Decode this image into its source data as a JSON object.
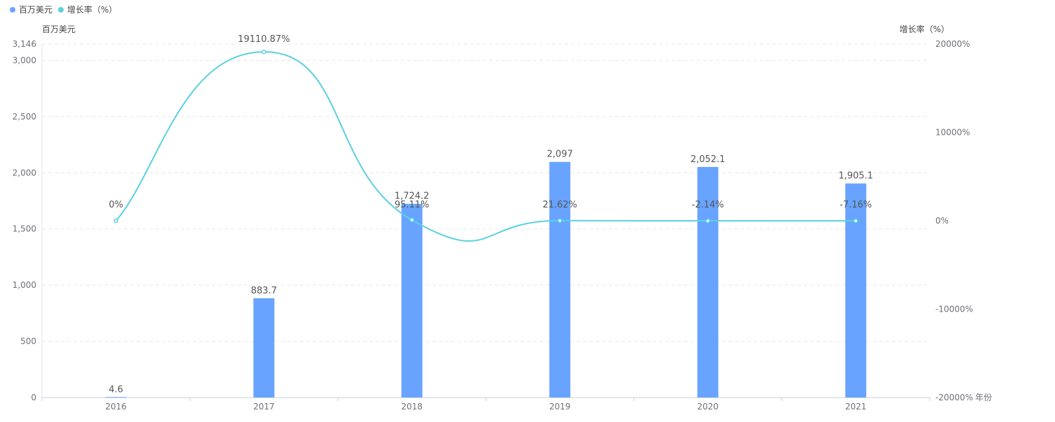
{
  "chart_data": {
    "type": "bar+line",
    "categories": [
      "2016",
      "2017",
      "2018",
      "2019",
      "2020",
      "2021"
    ],
    "series": [
      {
        "name": "百万美元",
        "type": "bar",
        "axis": "left",
        "color": "#68a4ff",
        "values": [
          4.6,
          883.7,
          1724.2,
          2097,
          2052.1,
          1905.1
        ],
        "labels": [
          "4.6",
          "883.7",
          "1,724.2",
          "2,097",
          "2,052.1",
          "1,905.1"
        ]
      },
      {
        "name": "增长率（%）",
        "type": "line",
        "smooth": true,
        "axis": "right",
        "color": "#5bd1e0",
        "values": [
          0,
          19110.87,
          95.11,
          21.62,
          -2.14,
          -7.16
        ],
        "labels": [
          "0%",
          "19110.87%",
          "95.11%",
          "21.62%",
          "-2.14%",
          "-7.16%"
        ]
      }
    ],
    "y_left": {
      "label": "百万美元",
      "range": [
        0,
        3146
      ],
      "ticks": [
        0,
        500,
        1000,
        1500,
        2000,
        2500,
        3000,
        3146
      ],
      "tick_labels": [
        "0",
        "500",
        "1,000",
        "1,500",
        "2,000",
        "2,500",
        "3,000",
        "3,146"
      ]
    },
    "y_right": {
      "label": "增长率（%）",
      "range": [
        -20000,
        20000
      ],
      "ticks": [
        -20000,
        -10000,
        0,
        10000,
        20000
      ],
      "tick_labels": [
        "-20000%",
        "-10000%",
        "0%",
        "10000%",
        "20000%"
      ]
    },
    "xlabel": "年份",
    "grid": true,
    "legend": {
      "placement": "top-left",
      "entries": [
        "百万美元",
        "增长率（%）"
      ]
    }
  }
}
